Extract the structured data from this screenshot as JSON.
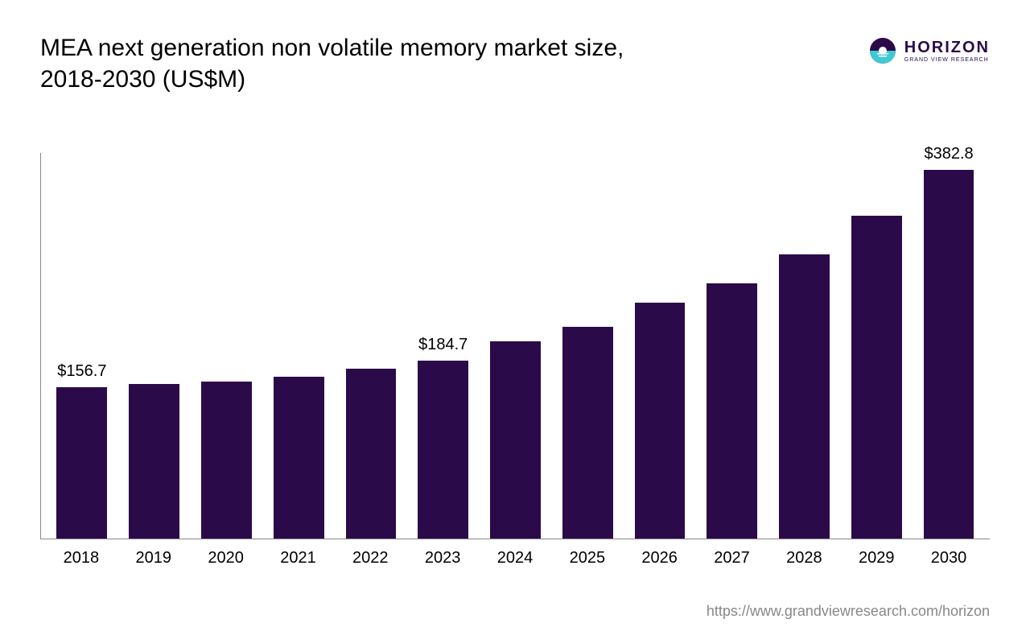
{
  "title": "MEA next generation non volatile memory market size, 2018-2030 (US$M)",
  "logo": {
    "main": "HORIZON",
    "sub": "GRAND VIEW RESEARCH",
    "circle_color": "#2b0a4a",
    "accent_color": "#41c8d6"
  },
  "chart": {
    "type": "bar",
    "bar_color": "#2b0a4a",
    "axis_color": "#888888",
    "background_color": "#ffffff",
    "label_fontsize": 20,
    "tick_fontsize": 20,
    "y_max": 400,
    "bar_width_pct": 70,
    "categories": [
      "2018",
      "2019",
      "2020",
      "2021",
      "2022",
      "2023",
      "2024",
      "2025",
      "2026",
      "2027",
      "2028",
      "2029",
      "2030"
    ],
    "values": [
      156.7,
      160,
      163,
      168,
      176,
      184.7,
      205,
      220,
      245,
      265,
      295,
      335,
      382.8
    ],
    "value_labels": [
      {
        "index": 0,
        "text": "$156.7"
      },
      {
        "index": 5,
        "text": "$184.7"
      },
      {
        "index": 12,
        "text": "$382.8"
      }
    ]
  },
  "source": "https://www.grandviewresearch.com/horizon"
}
